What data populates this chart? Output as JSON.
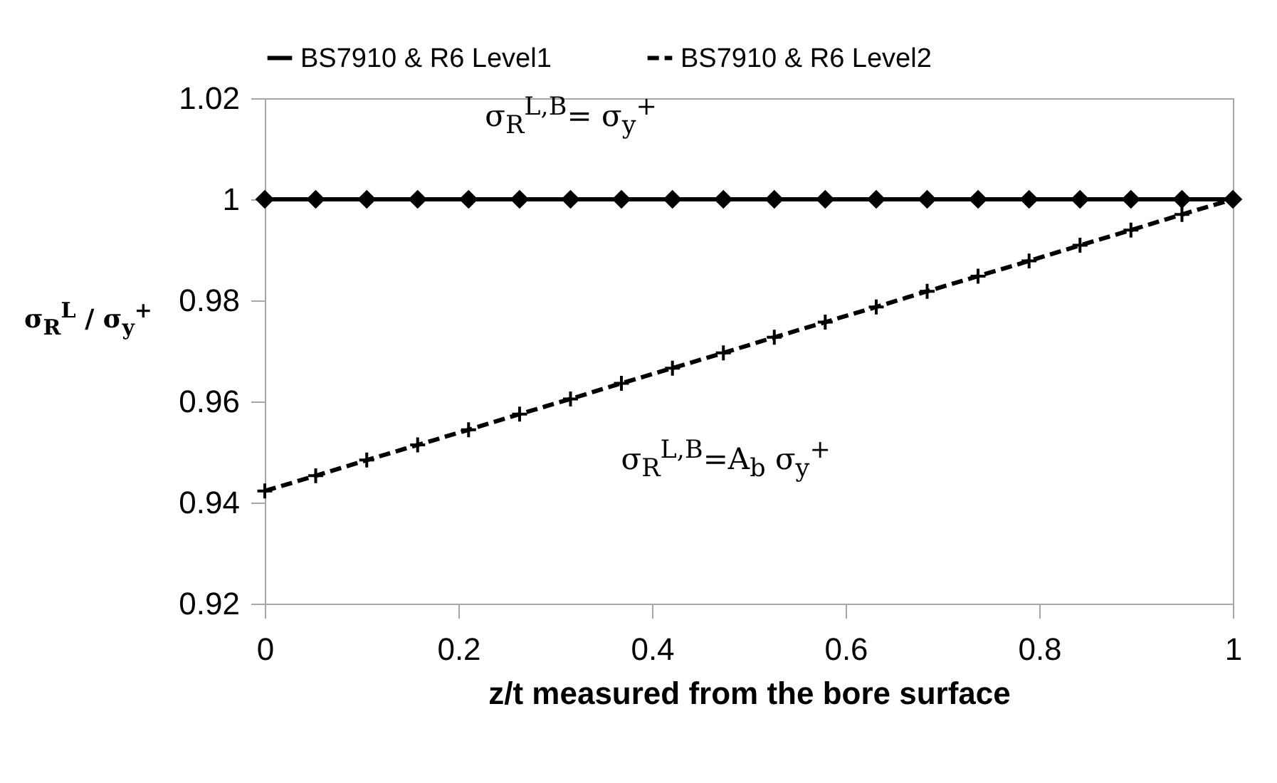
{
  "chart_data": {
    "type": "line",
    "xlabel": "z/t measured from the bore surface",
    "ylabel": "σ$_{R}$$^{L}$ / σ$_{y}$$^{+}$",
    "x": [
      0,
      0.0526,
      0.1053,
      0.1579,
      0.2105,
      0.2632,
      0.3158,
      0.3684,
      0.4211,
      0.4737,
      0.5263,
      0.5789,
      0.6316,
      0.6842,
      0.7368,
      0.7895,
      0.8421,
      0.8947,
      0.9474,
      1
    ],
    "series": [
      {
        "name": "BS7910 & R6 Level1",
        "color": "#000000",
        "marker": "diamond",
        "line_style": "solid",
        "values": [
          1,
          1,
          1,
          1,
          1,
          1,
          1,
          1,
          1,
          1,
          1,
          1,
          1,
          1,
          1,
          1,
          1,
          1,
          1,
          1
        ]
      },
      {
        "name": "BS7910 & R6 Level2",
        "color": "#000000",
        "marker": "cross",
        "line_style": "dashed",
        "values": [
          0.9423,
          0.9453,
          0.9484,
          0.9514,
          0.9544,
          0.9575,
          0.9605,
          0.9636,
          0.9666,
          0.9696,
          0.9727,
          0.9757,
          0.9787,
          0.9818,
          0.9848,
          0.9878,
          0.9909,
          0.9939,
          0.997,
          1
        ]
      }
    ],
    "xlim": [
      0,
      1
    ],
    "xticks": [
      0,
      0.2,
      0.4,
      0.6,
      0.8,
      1
    ],
    "ylim": [
      0.92,
      1.02
    ],
    "yticks": [
      0.92,
      0.94,
      0.96,
      0.98,
      1,
      1.02
    ],
    "grid": false,
    "legend": "top",
    "annotations": [
      "σ$_{R}$$^{L,B}$= σ$_{y}$$^{+}$",
      "σ$_{R}$$^{L,B}$=A$_{b}$ σ$_{y}$$^{+}$"
    ]
  }
}
